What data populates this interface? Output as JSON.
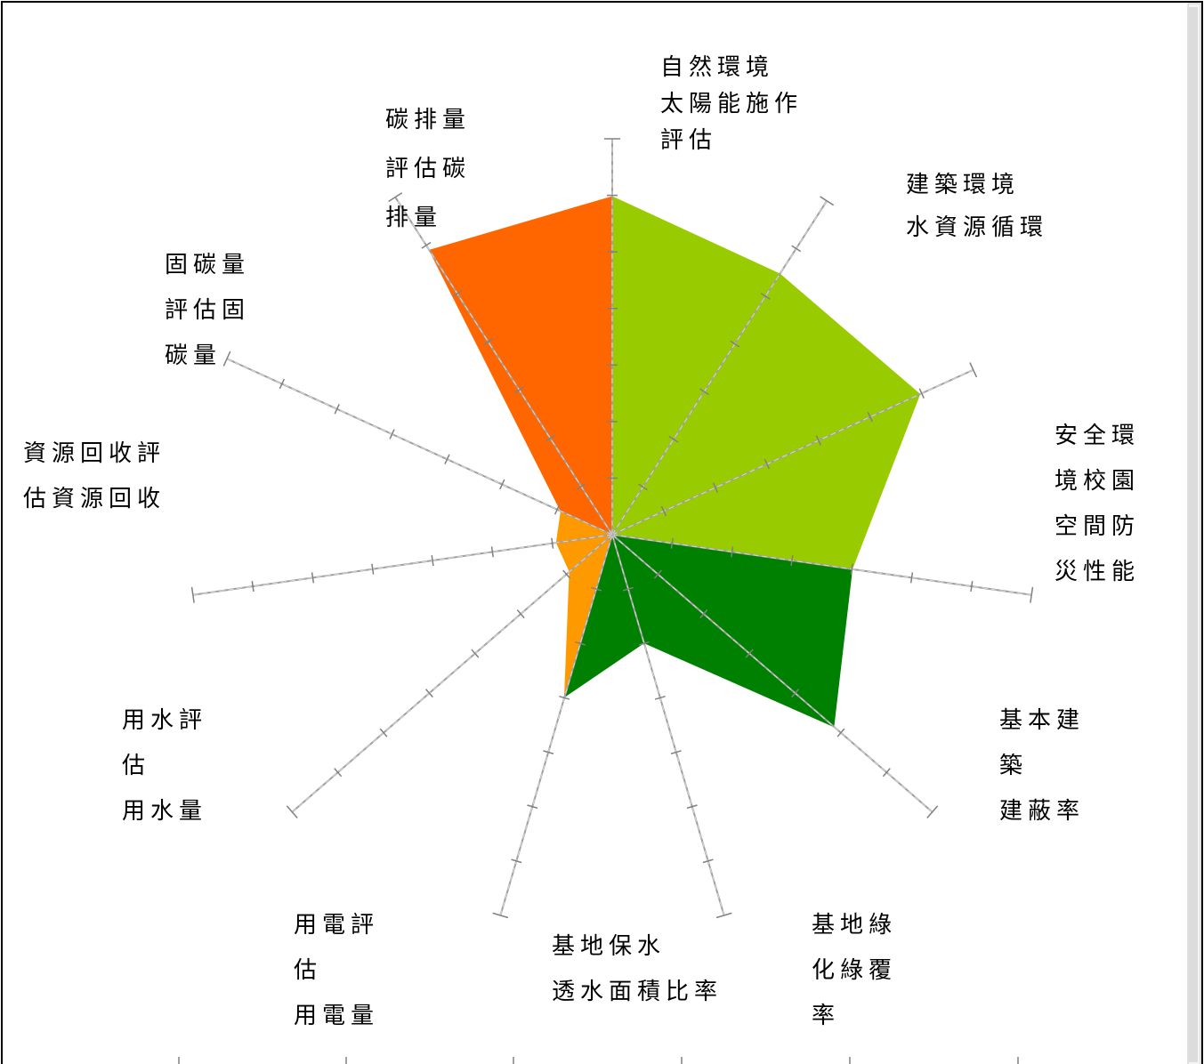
{
  "chart_data": {
    "type": "radar-sector",
    "title": "",
    "axis_max": 6,
    "ticks_per_axis": 7,
    "axes": [
      {
        "name": "auto-nature",
        "label_lines": [
          "自然環境",
          "太陽能施作",
          "評估"
        ],
        "value": 6.0,
        "color": "#99cc00"
      },
      {
        "name": "building-water",
        "label_lines": [
          "建築環境",
          "水資源循環"
        ],
        "value": 5.5,
        "color": "#99cc00"
      },
      {
        "name": "safety",
        "label_lines": [
          "安全環",
          "境校園",
          "空間防",
          "災性能"
        ],
        "value": 6.0,
        "color": "#99cc00"
      },
      {
        "name": "site-coverage",
        "label_lines": [
          "基本建",
          "築",
          "建蔽率"
        ],
        "value": 4.3,
        "color": "#99cc00"
      },
      {
        "name": "green-coverage",
        "label_lines": [
          "基地綠",
          "化綠覆",
          "率"
        ],
        "value": 5.2,
        "color": "#008000"
      },
      {
        "name": "water-retention",
        "label_lines": [
          "基地保水",
          "透水面積比率"
        ],
        "value": 2.0,
        "color": "#008000"
      },
      {
        "name": "electricity",
        "label_lines": [
          "用電評",
          "估",
          "用電量"
        ],
        "value": 3.0,
        "color": "#008000"
      },
      {
        "name": "water-use",
        "label_lines": [
          "用水評",
          "估",
          "用水量"
        ],
        "value": 1.0,
        "color": "#ff9900"
      },
      {
        "name": "recycling",
        "label_lines": [
          "資源回收評",
          "估資源回收"
        ],
        "value": 1.0,
        "color": "#ff9900"
      },
      {
        "name": "carbon-fixation",
        "label_lines": [
          "固碳量",
          "評估固",
          "碳量"
        ],
        "value": 1.0,
        "color": "#ff9900"
      },
      {
        "name": "carbon-emission",
        "label_lines": [
          "碳排量",
          "評估碳",
          "排量"
        ],
        "value": 6.0,
        "color": "#ff6600"
      }
    ],
    "sectors": [
      {
        "from": 0,
        "to": 1,
        "color": "#99cc00"
      },
      {
        "from": 1,
        "to": 2,
        "color": "#99cc00"
      },
      {
        "from": 2,
        "to": 3,
        "color": "#99cc00"
      },
      {
        "from": 3,
        "to": 4,
        "color": "#008000"
      },
      {
        "from": 4,
        "to": 5,
        "color": "#008000"
      },
      {
        "from": 5,
        "to": 6,
        "color": "#008000"
      },
      {
        "from": 6,
        "to": 7,
        "color": "#ff9900"
      },
      {
        "from": 7,
        "to": 8,
        "color": "#ff9900"
      },
      {
        "from": 8,
        "to": 9,
        "color": "#ff9900"
      },
      {
        "from": 9,
        "to": 10,
        "color": "#ff6600"
      },
      {
        "from": 10,
        "to": 0,
        "color": "#ff6600"
      }
    ]
  }
}
